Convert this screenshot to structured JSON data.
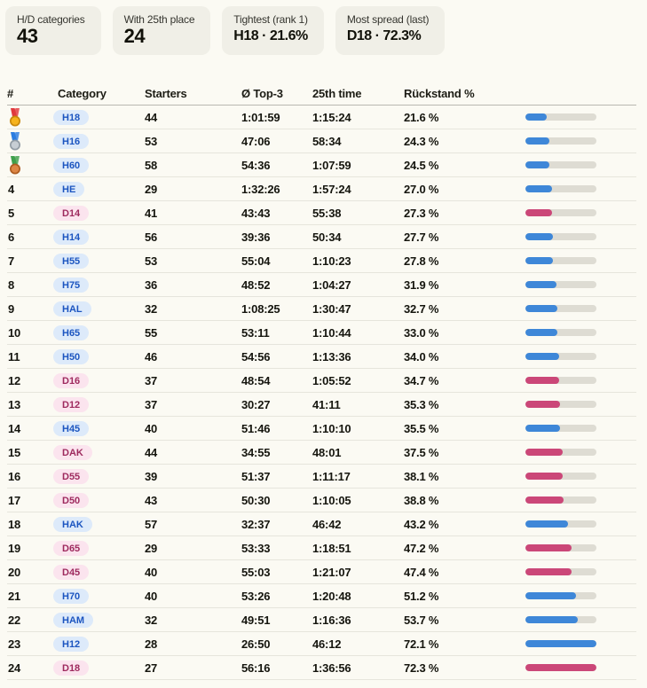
{
  "stats": [
    {
      "label": "H/D categories",
      "value": "43"
    },
    {
      "label": "With 25th place",
      "value": "24"
    },
    {
      "label": "Tightest (rank 1)",
      "value": "H18 · 21.6%"
    },
    {
      "label": "Most spread (last)",
      "value": "D18 · 72.3%"
    }
  ],
  "table": {
    "columns": [
      "#",
      "Category",
      "Starters",
      "Ø Top-3",
      "25th time",
      "Rückstand %"
    ],
    "max_pct": 72.3,
    "rows": [
      {
        "rank": "1",
        "medal": "gold",
        "category": "H18",
        "starters": "44",
        "top3": "1:01:59",
        "t25": "1:15:24",
        "pct": 21.6,
        "pct_label": "21.6 %"
      },
      {
        "rank": "2",
        "medal": "silver",
        "category": "H16",
        "starters": "53",
        "top3": "47:06",
        "t25": "58:34",
        "pct": 24.3,
        "pct_label": "24.3 %"
      },
      {
        "rank": "3",
        "medal": "bronze",
        "category": "H60",
        "starters": "58",
        "top3": "54:36",
        "t25": "1:07:59",
        "pct": 24.5,
        "pct_label": "24.5 %"
      },
      {
        "rank": "4",
        "medal": null,
        "category": "HE",
        "starters": "29",
        "top3": "1:32:26",
        "t25": "1:57:24",
        "pct": 27.0,
        "pct_label": "27.0 %"
      },
      {
        "rank": "5",
        "medal": null,
        "category": "D14",
        "starters": "41",
        "top3": "43:43",
        "t25": "55:38",
        "pct": 27.3,
        "pct_label": "27.3 %"
      },
      {
        "rank": "6",
        "medal": null,
        "category": "H14",
        "starters": "56",
        "top3": "39:36",
        "t25": "50:34",
        "pct": 27.7,
        "pct_label": "27.7 %"
      },
      {
        "rank": "7",
        "medal": null,
        "category": "H55",
        "starters": "53",
        "top3": "55:04",
        "t25": "1:10:23",
        "pct": 27.8,
        "pct_label": "27.8 %"
      },
      {
        "rank": "8",
        "medal": null,
        "category": "H75",
        "starters": "36",
        "top3": "48:52",
        "t25": "1:04:27",
        "pct": 31.9,
        "pct_label": "31.9 %"
      },
      {
        "rank": "9",
        "medal": null,
        "category": "HAL",
        "starters": "32",
        "top3": "1:08:25",
        "t25": "1:30:47",
        "pct": 32.7,
        "pct_label": "32.7 %"
      },
      {
        "rank": "10",
        "medal": null,
        "category": "H65",
        "starters": "55",
        "top3": "53:11",
        "t25": "1:10:44",
        "pct": 33.0,
        "pct_label": "33.0 %"
      },
      {
        "rank": "11",
        "medal": null,
        "category": "H50",
        "starters": "46",
        "top3": "54:56",
        "t25": "1:13:36",
        "pct": 34.0,
        "pct_label": "34.0 %"
      },
      {
        "rank": "12",
        "medal": null,
        "category": "D16",
        "starters": "37",
        "top3": "48:54",
        "t25": "1:05:52",
        "pct": 34.7,
        "pct_label": "34.7 %"
      },
      {
        "rank": "13",
        "medal": null,
        "category": "D12",
        "starters": "37",
        "top3": "30:27",
        "t25": "41:11",
        "pct": 35.3,
        "pct_label": "35.3 %"
      },
      {
        "rank": "14",
        "medal": null,
        "category": "H45",
        "starters": "40",
        "top3": "51:46",
        "t25": "1:10:10",
        "pct": 35.5,
        "pct_label": "35.5 %"
      },
      {
        "rank": "15",
        "medal": null,
        "category": "DAK",
        "starters": "44",
        "top3": "34:55",
        "t25": "48:01",
        "pct": 37.5,
        "pct_label": "37.5 %"
      },
      {
        "rank": "16",
        "medal": null,
        "category": "D55",
        "starters": "39",
        "top3": "51:37",
        "t25": "1:11:17",
        "pct": 38.1,
        "pct_label": "38.1 %"
      },
      {
        "rank": "17",
        "medal": null,
        "category": "D50",
        "starters": "43",
        "top3": "50:30",
        "t25": "1:10:05",
        "pct": 38.8,
        "pct_label": "38.8 %"
      },
      {
        "rank": "18",
        "medal": null,
        "category": "HAK",
        "starters": "57",
        "top3": "32:37",
        "t25": "46:42",
        "pct": 43.2,
        "pct_label": "43.2 %"
      },
      {
        "rank": "19",
        "medal": null,
        "category": "D65",
        "starters": "29",
        "top3": "53:33",
        "t25": "1:18:51",
        "pct": 47.2,
        "pct_label": "47.2 %"
      },
      {
        "rank": "20",
        "medal": null,
        "category": "D45",
        "starters": "40",
        "top3": "55:03",
        "t25": "1:21:07",
        "pct": 47.4,
        "pct_label": "47.4 %"
      },
      {
        "rank": "21",
        "medal": null,
        "category": "H70",
        "starters": "40",
        "top3": "53:26",
        "t25": "1:20:48",
        "pct": 51.2,
        "pct_label": "51.2 %"
      },
      {
        "rank": "22",
        "medal": null,
        "category": "HAM",
        "starters": "32",
        "top3": "49:51",
        "t25": "1:16:36",
        "pct": 53.7,
        "pct_label": "53.7 %"
      },
      {
        "rank": "23",
        "medal": null,
        "category": "H12",
        "starters": "28",
        "top3": "26:50",
        "t25": "46:12",
        "pct": 72.1,
        "pct_label": "72.1 %"
      },
      {
        "rank": "24",
        "medal": null,
        "category": "D18",
        "starters": "27",
        "top3": "56:16",
        "t25": "1:36:56",
        "pct": 72.3,
        "pct_label": "72.3 %"
      }
    ]
  },
  "colors": {
    "page_bg": "#fbfaf3",
    "card_bg": "#f0efe7",
    "bar_track": "#dedcd3",
    "bar_men": "#3e87d8",
    "bar_women": "#cb4778",
    "pill_men_bg": "#ddeafa",
    "pill_men_text": "#1c55c0",
    "pill_women_bg": "#fbe4ee",
    "pill_women_text": "#9e2a5e"
  },
  "medals": {
    "gold": {
      "ribbon": "#e0393e",
      "disc": "#f6b31c",
      "rim": "#c9890d"
    },
    "silver": {
      "ribbon": "#2b7de0",
      "disc": "#c7ced4",
      "rim": "#939da5"
    },
    "bronze": {
      "ribbon": "#3fa04c",
      "disc": "#dd8645",
      "rim": "#ad5d22"
    }
  }
}
